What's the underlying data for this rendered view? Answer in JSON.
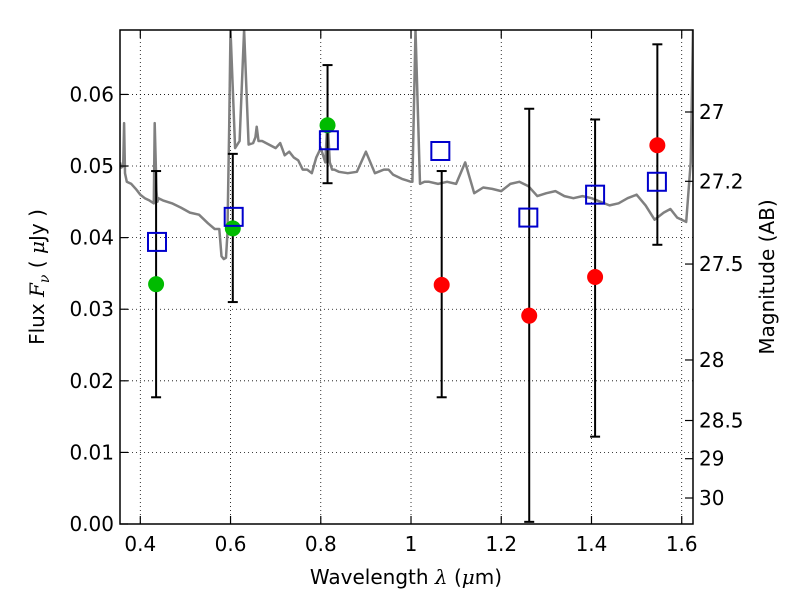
{
  "chart_data": {
    "type": "scatter",
    "title": "",
    "xlabel": "Wavelength",
    "xlabel_symbol": "λ",
    "xlabel_unit_open": " (",
    "xlabel_unit_mu": "μ",
    "xlabel_unit_rest": "m)",
    "ylabel_prefix": "Flux",
    "ylabel_symbol": "F",
    "ylabel_subscript": "ν",
    "ylabel_unit_open": "( ",
    "ylabel_unit_mu": "μ",
    "ylabel_unit_rest": "Jy )",
    "y2label": "Magnitude (AB)",
    "xlim": [
      0.355,
      1.625
    ],
    "ylim": [
      0.0,
      0.069
    ],
    "grid": true,
    "xticks": [
      {
        "value": 0.4,
        "label": "0.4"
      },
      {
        "value": 0.6,
        "label": "0.6"
      },
      {
        "value": 0.8,
        "label": "0.8"
      },
      {
        "value": 1.0,
        "label": "1"
      },
      {
        "value": 1.2,
        "label": "1.2"
      },
      {
        "value": 1.4,
        "label": "1.4"
      },
      {
        "value": 1.6,
        "label": "1.6"
      }
    ],
    "yticks": [
      {
        "value": 0.0,
        "label": "0.00"
      },
      {
        "value": 0.01,
        "label": "0.01"
      },
      {
        "value": 0.02,
        "label": "0.02"
      },
      {
        "value": 0.03,
        "label": "0.03"
      },
      {
        "value": 0.04,
        "label": "0.04"
      },
      {
        "value": 0.05,
        "label": "0.05"
      },
      {
        "value": 0.06,
        "label": "0.06"
      }
    ],
    "y2ticks": [
      {
        "mag": 27,
        "label": "27"
      },
      {
        "mag": 27.2,
        "label": "27.2"
      },
      {
        "mag": 27.5,
        "label": "27.5"
      },
      {
        "mag": 28,
        "label": "28"
      },
      {
        "mag": 28.5,
        "label": "28.5"
      },
      {
        "mag": 29,
        "label": "29"
      },
      {
        "mag": 30,
        "label": "30"
      }
    ],
    "series": [
      {
        "kind": "model_spectrum",
        "color": "#808080",
        "x": [
          0.355,
          0.358,
          0.362,
          0.364,
          0.366,
          0.37,
          0.38,
          0.39,
          0.4,
          0.41,
          0.42,
          0.43,
          0.432,
          0.436,
          0.438,
          0.44,
          0.45,
          0.47,
          0.49,
          0.51,
          0.53,
          0.55,
          0.565,
          0.575,
          0.58,
          0.585,
          0.59,
          0.593,
          0.597,
          0.6,
          0.61,
          0.62,
          0.63,
          0.64,
          0.65,
          0.655,
          0.658,
          0.662,
          0.67,
          0.7,
          0.71,
          0.72,
          0.73,
          0.74,
          0.75,
          0.76,
          0.77,
          0.78,
          0.79,
          0.8,
          0.81,
          0.815,
          0.82,
          0.825,
          0.83,
          0.84,
          0.86,
          0.88,
          0.9,
          0.92,
          0.94,
          0.95,
          0.96,
          0.97,
          0.98,
          0.99,
          1.0,
          1.003,
          1.01,
          1.02,
          1.03,
          1.04,
          1.06,
          1.08,
          1.1,
          1.12,
          1.14,
          1.16,
          1.18,
          1.2,
          1.22,
          1.24,
          1.26,
          1.28,
          1.3,
          1.32,
          1.34,
          1.36,
          1.38,
          1.4,
          1.42,
          1.44,
          1.46,
          1.48,
          1.5,
          1.52,
          1.54,
          1.56,
          1.575,
          1.59,
          1.6,
          1.61,
          1.62,
          1.625
        ],
        "y": [
          0.0505,
          0.0498,
          0.05,
          0.056,
          0.049,
          0.0478,
          0.0475,
          0.0468,
          0.046,
          0.0455,
          0.0452,
          0.0448,
          0.056,
          0.0465,
          0.045,
          0.0455,
          0.0452,
          0.0448,
          0.0442,
          0.0435,
          0.0432,
          0.042,
          0.0412,
          0.0412,
          0.0374,
          0.037,
          0.0372,
          0.0405,
          0.0555,
          0.069,
          0.0525,
          0.0535,
          0.069,
          0.053,
          0.0532,
          0.054,
          0.0555,
          0.0535,
          0.0535,
          0.0525,
          0.0532,
          0.0515,
          0.052,
          0.0512,
          0.0508,
          0.0495,
          0.0495,
          0.049,
          0.0512,
          0.0525,
          0.0505,
          0.0565,
          0.0505,
          0.0495,
          0.0495,
          0.0492,
          0.049,
          0.0492,
          0.052,
          0.049,
          0.0495,
          0.0495,
          0.0488,
          0.0485,
          0.0482,
          0.048,
          0.0478,
          0.0478,
          0.069,
          0.0475,
          0.0478,
          0.0478,
          0.0475,
          0.0478,
          0.0475,
          0.0505,
          0.0462,
          0.047,
          0.0468,
          0.0465,
          0.0475,
          0.0478,
          0.0472,
          0.0458,
          0.0462,
          0.0465,
          0.0458,
          0.0455,
          0.0458,
          0.0455,
          0.045,
          0.0445,
          0.0448,
          0.0455,
          0.046,
          0.0445,
          0.0425,
          0.0435,
          0.044,
          0.0428,
          0.0425,
          0.0422,
          0.0505,
          0.069
        ]
      },
      {
        "kind": "observed",
        "color": "#00bb00",
        "x": [
          0.435,
          0.605,
          0.815
        ],
        "y": [
          0.0335,
          0.0413,
          0.0557
        ],
        "err": [
          [
            0.0177,
            0.0493
          ],
          [
            0.031,
            0.0517
          ],
          [
            0.0476,
            0.0641
          ]
        ]
      },
      {
        "kind": "observed",
        "color": "#ff0000",
        "x": [
          1.068,
          1.262,
          1.408,
          1.546
        ],
        "y": [
          0.0334,
          0.0291,
          0.0345,
          0.0529
        ],
        "err": [
          [
            0.0177,
            0.0493
          ],
          [
            0.0003,
            0.058
          ],
          [
            0.0122,
            0.0565
          ],
          [
            0.039,
            0.067
          ]
        ]
      },
      {
        "kind": "model_bandflux",
        "color": "#0000cc",
        "x": [
          0.437,
          0.607,
          0.818,
          1.065,
          1.26,
          1.408,
          1.545
        ],
        "y": [
          0.0394,
          0.0429,
          0.0536,
          0.0521,
          0.0428,
          0.046,
          0.0478
        ]
      }
    ]
  }
}
